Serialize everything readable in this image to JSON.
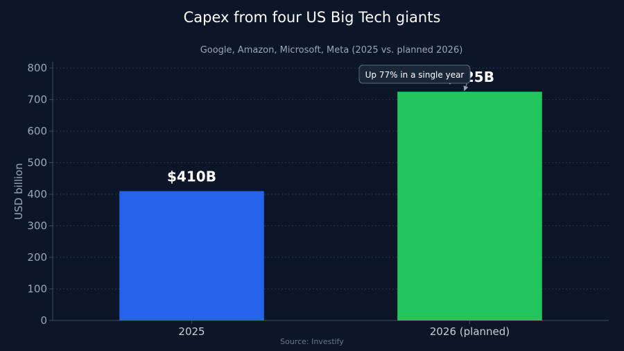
{
  "chart_data": {
    "type": "bar",
    "title": "Capex from four US Big Tech giants",
    "subtitle": "Google, Amazon, Microsoft, Meta (2025 vs. planned 2026)",
    "ylabel": "USD billion",
    "categories": [
      "2025",
      "2026 (planned)"
    ],
    "values": [
      410,
      725
    ],
    "data_labels": [
      "$410B",
      "$725B"
    ],
    "bar_colors": [
      "#2563eb",
      "#22c55e"
    ],
    "ylim": [
      0,
      820
    ],
    "yticks": [
      0,
      100,
      200,
      300,
      400,
      500,
      600,
      700,
      800
    ],
    "annotation": "Up 77% in a single year",
    "source": "Source: Investify",
    "grid": true
  }
}
